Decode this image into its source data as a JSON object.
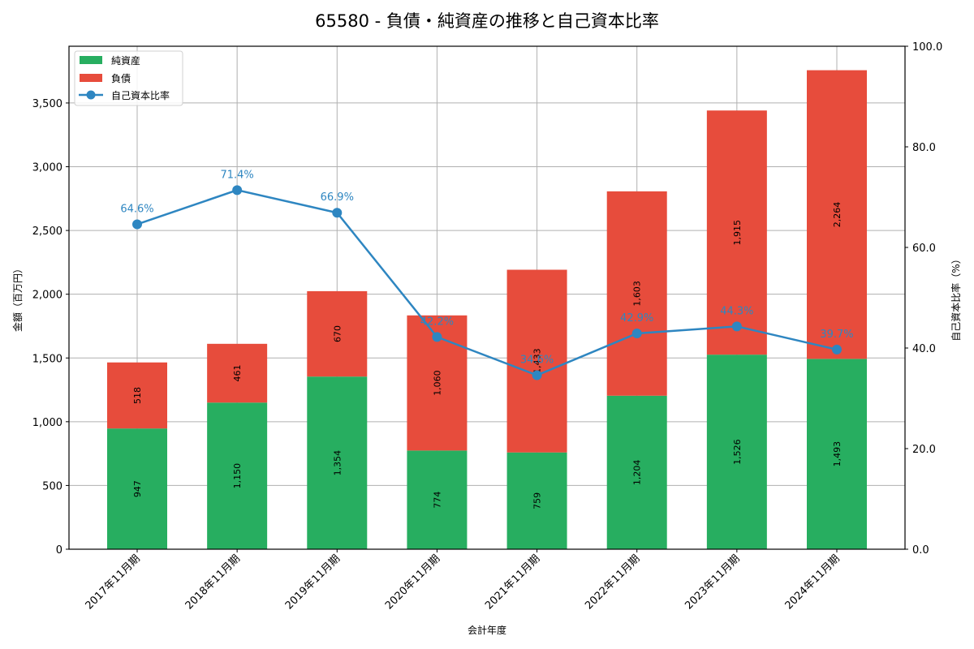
{
  "chart_data": {
    "type": "bar",
    "subtype": "stacked bar + line (dual axis)",
    "title": "65580 - 負債・純資産の推移と自己資本比率",
    "xlabel": "会計年度",
    "ylabel": "金額（百万円）",
    "y2label": "自己資本比率（%）",
    "categories": [
      "2017年11月期",
      "2018年11月期",
      "2019年11月期",
      "2020年11月期",
      "2021年11月期",
      "2022年11月期",
      "2023年11月期",
      "2024年11月期"
    ],
    "series": [
      {
        "name": "純資産",
        "type": "bar",
        "axis": "left",
        "color": "#27ae60",
        "values": [
          947,
          1150,
          1354,
          774,
          759,
          1204,
          1526,
          1493
        ],
        "labels": [
          "947",
          "1,150",
          "1,354",
          "774",
          "759",
          "1,204",
          "1,526",
          "1,493"
        ]
      },
      {
        "name": "負債",
        "type": "bar",
        "axis": "left",
        "color": "#e74c3c",
        "values": [
          518,
          461,
          670,
          1060,
          1433,
          1603,
          1915,
          2264
        ],
        "labels": [
          "518",
          "461",
          "670",
          "1,060",
          "1,433",
          "1,603",
          "1,915",
          "2,264"
        ]
      },
      {
        "name": "自己資本比率",
        "type": "line",
        "axis": "right",
        "color": "#2e86c1",
        "values": [
          64.6,
          71.4,
          66.9,
          42.2,
          34.6,
          42.9,
          44.3,
          39.7
        ],
        "labels": [
          "64.6%",
          "71.4%",
          "66.9%",
          "42.2%",
          "34.6%",
          "42.9%",
          "44.3%",
          "39.7%"
        ]
      }
    ],
    "ylim": [
      0,
      3945
    ],
    "y2lim": [
      0,
      100
    ],
    "yticks": [
      0,
      500,
      1000,
      1500,
      2000,
      2500,
      3000,
      3500
    ],
    "ytick_labels": [
      "0",
      "500",
      "1,000",
      "1,500",
      "2,000",
      "2,500",
      "3,000",
      "3,500"
    ],
    "y2ticks": [
      0,
      20,
      40,
      60,
      80,
      100
    ],
    "y2tick_labels": [
      "0.0",
      "20.0",
      "40.0",
      "60.0",
      "80.0",
      "100.0"
    ],
    "grid": true,
    "legend_position": "upper left",
    "legend": [
      "純資産",
      "負債",
      "自己資本比率"
    ]
  }
}
